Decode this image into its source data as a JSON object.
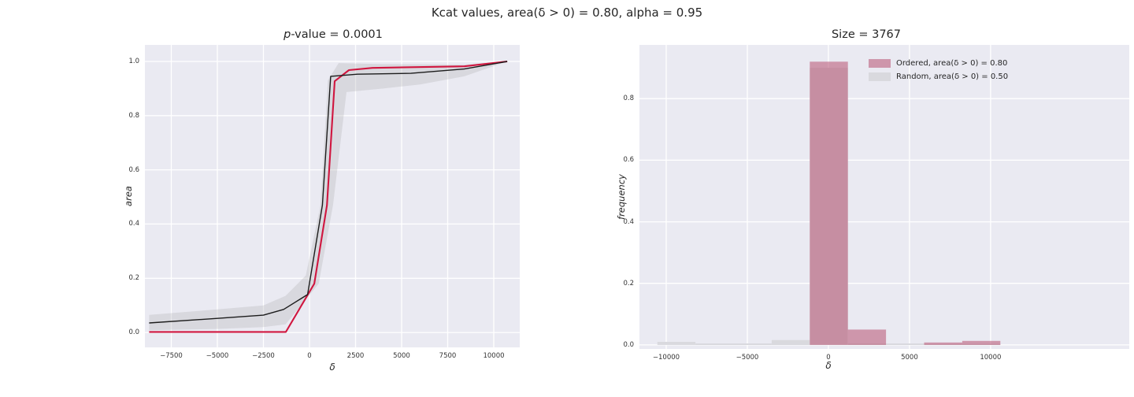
{
  "figure_title": "Kcat values, area(δ > 0) = 0.80, alpha = 0.95",
  "colors": {
    "axes_bg": "#eaeaf2",
    "grid": "#ffffff",
    "ordered_line": "#d0163f",
    "random_line": "#1c1c1c",
    "band_fill": "rgba(168,168,172,0.28)",
    "ordered_fill": "rgba(183,80,113,0.55)",
    "random_fill": "#d9d9de",
    "text": "#262626"
  },
  "chart_data": [
    {
      "type": "line",
      "title_italic": "p",
      "title_text": "-value = 0.0001",
      "xlabel": "δ",
      "ylabel": "area",
      "xlim": [
        -8930,
        11410
      ],
      "ylim": [
        -0.055,
        1.061
      ],
      "xticks": [
        -7500,
        -5000,
        -2500,
        0,
        2500,
        5000,
        7500,
        10000
      ],
      "xtick_labels": [
        "−7500",
        "−5000",
        "−2500",
        "0",
        "2500",
        "5000",
        "7500",
        "10000"
      ],
      "yticks": [
        0.0,
        0.2,
        0.4,
        0.6,
        0.8,
        1.0
      ],
      "ytick_labels": [
        "0.0",
        "0.2",
        "0.4",
        "0.6",
        "0.8",
        "1.0"
      ],
      "grid": true,
      "series": [
        {
          "name": "ordered",
          "color_key": "ordered_line",
          "width": 2.1,
          "x": [
            -8700,
            -1280,
            260,
            950,
            1370,
            2140,
            3420,
            8400,
            10730
          ],
          "y": [
            0.002,
            0.002,
            0.18,
            0.47,
            0.927,
            0.968,
            0.976,
            0.982,
            1.0
          ]
        },
        {
          "name": "random-mean",
          "color_key": "random_line",
          "width": 1.4,
          "x": [
            -8700,
            -5000,
            -2500,
            -1400,
            -100,
            700,
            1150,
            2600,
            5500,
            8400,
            10730
          ],
          "y": [
            0.035,
            0.052,
            0.064,
            0.085,
            0.14,
            0.47,
            0.945,
            0.953,
            0.956,
            0.972,
            1.0
          ]
        }
      ],
      "band": {
        "name": "random-confidence-band",
        "x_upper": [
          -8700,
          -5000,
          -2500,
          -1300,
          -200,
          600,
          1000,
          1580,
          4000,
          8400,
          10730
        ],
        "y_upper": [
          0.065,
          0.085,
          0.1,
          0.135,
          0.21,
          0.47,
          0.93,
          0.994,
          0.99,
          0.988,
          1.0
        ],
        "x_lower": [
          -8700,
          -5000,
          -2500,
          -1300,
          500,
          1280,
          2010,
          4000,
          6000,
          8400,
          10730
        ],
        "y_lower": [
          0.008,
          0.013,
          0.02,
          0.03,
          0.18,
          0.47,
          0.887,
          0.9,
          0.915,
          0.945,
          1.0
        ]
      }
    },
    {
      "type": "bar",
      "title_italic": "",
      "title_text": "Size = 3767",
      "xlabel": "δ",
      "ylabel": "frequency",
      "xlim": [
        -11650,
        18550
      ],
      "ylim": [
        -0.013,
        0.9745
      ],
      "xticks": [
        -10000,
        -5000,
        0,
        5000,
        10000
      ],
      "xtick_labels": [
        "−10000",
        "−5000",
        "0",
        "5000",
        "10000"
      ],
      "yticks": [
        0.0,
        0.2,
        0.4,
        0.6,
        0.8
      ],
      "ytick_labels": [
        "0.0",
        "0.2",
        "0.4",
        "0.6",
        "0.8"
      ],
      "grid": true,
      "bin_edges": [
        -10550,
        -8200,
        -5850,
        -3500,
        -1150,
        1200,
        3550,
        5900,
        8250,
        10600
      ],
      "series": [
        {
          "name": "Random, area(δ > 0) = 0.50",
          "color_key": "random_fill",
          "values": [
            0.01,
            0.005,
            0.005,
            0.016,
            0.9,
            0.005,
            0.005,
            0.004,
            0.004
          ]
        },
        {
          "name": "Ordered, area(δ > 0) = 0.80",
          "color_key": "ordered_fill",
          "values": [
            0,
            0,
            0,
            0,
            0.92,
            0.05,
            0,
            0.008,
            0.013
          ]
        }
      ],
      "legend": [
        {
          "label": "Ordered, area(δ > 0) = 0.80",
          "color_key": "ordered_fill"
        },
        {
          "label": "Random, area(δ > 0) = 0.50",
          "color_key": "random_fill"
        }
      ]
    }
  ]
}
